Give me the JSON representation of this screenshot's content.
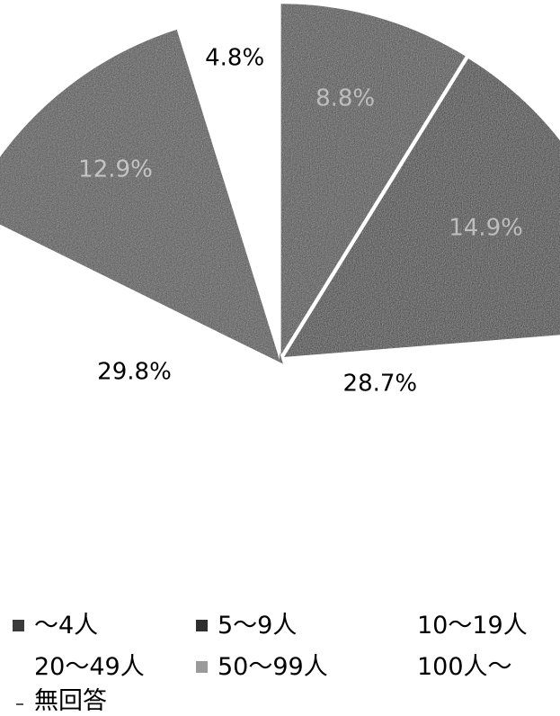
{
  "chart_data": {
    "type": "pie",
    "title": "",
    "slices": [
      {
        "label": "～4人",
        "value": 8.8,
        "value_label": "8.8%",
        "color": "#444444",
        "text_color": "#bdbdbd"
      },
      {
        "label": "5～9人",
        "value": 14.9,
        "value_label": "14.9%",
        "color": "#363636",
        "text_color": "#bdbdbd"
      },
      {
        "label": "10～19人",
        "value": 28.7,
        "value_label": "28.7%",
        "color": "#ffffff",
        "text_color": "#000000"
      },
      {
        "label": "20～49人",
        "value": 29.8,
        "value_label": "29.8%",
        "color": "#ffffff",
        "text_color": "#000000"
      },
      {
        "label": "50～99人",
        "value": 12.9,
        "value_label": "12.9%",
        "color": "#4a4a4a",
        "text_color": "#c4c4c4"
      },
      {
        "label": "100人～",
        "value": 4.8,
        "value_label": "4.8%",
        "color": "#ffffff",
        "text_color": "#000000"
      }
    ],
    "legend": {
      "position": "bottom",
      "items": [
        {
          "label": "～4人",
          "icon": "dark-square-icon",
          "color": "#3a3a3a"
        },
        {
          "label": "5～9人",
          "icon": "dark-square-icon",
          "color": "#2e2e2e"
        },
        {
          "label": "10～19人",
          "icon": "none",
          "color": "#ffffff"
        },
        {
          "label": "20～49人",
          "icon": "none",
          "color": "#ffffff"
        },
        {
          "label": "50～99人",
          "icon": "light-square-icon",
          "color": "#9a9a9a"
        },
        {
          "label": "100人～",
          "icon": "none",
          "color": "#ffffff"
        },
        {
          "label": "無回答",
          "icon": "dash-icon",
          "color": "#555555"
        }
      ]
    }
  }
}
